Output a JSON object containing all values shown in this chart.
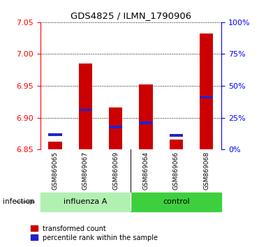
{
  "title": "GDS4825 / ILMN_1790906",
  "samples": [
    "GSM869065",
    "GSM869067",
    "GSM869069",
    "GSM869064",
    "GSM869066",
    "GSM869068"
  ],
  "group_labels": [
    "influenza A",
    "control"
  ],
  "group_colors": [
    "#b2f0b2",
    "#3ecf3e"
  ],
  "bar_base": 6.85,
  "red_values": [
    6.862,
    6.985,
    6.916,
    6.952,
    6.865,
    7.032
  ],
  "blue_values": [
    6.873,
    6.912,
    6.885,
    6.892,
    6.872,
    6.932
  ],
  "ylim": [
    6.85,
    7.05
  ],
  "yticks_left": [
    6.85,
    6.9,
    6.95,
    7.0,
    7.05
  ],
  "yticks_right": [
    0,
    25,
    50,
    75,
    100
  ],
  "right_axis_color": "blue",
  "left_axis_color": "red",
  "bar_color": "#cc0000",
  "blue_color": "#2222cc",
  "bg_color": "#c8c8c8",
  "infection_label": "infection",
  "legend_red": "transformed count",
  "legend_blue": "percentile rank within the sample"
}
